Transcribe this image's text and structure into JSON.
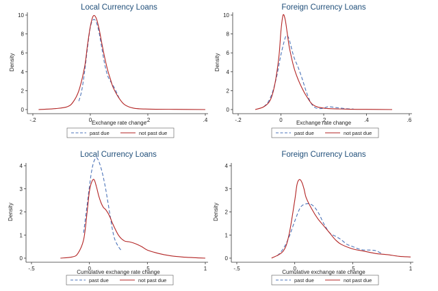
{
  "chart_data": [
    {
      "type": "line",
      "title": "Local Currency Loans",
      "xlabel": "Exchange rate change",
      "ylabel": "Density",
      "xlim": [
        -0.2,
        0.4
      ],
      "ylim": [
        0,
        10
      ],
      "xticks": [
        -0.2,
        0,
        0.2,
        0.4
      ],
      "xtick_labels": [
        "-.2",
        "0",
        ".2",
        ".4"
      ],
      "yticks": [
        0,
        2,
        4,
        6,
        8,
        10
      ],
      "ytick_labels": [
        "0",
        "2",
        "4",
        "6",
        "8",
        "10"
      ],
      "grid": false,
      "legend": "bottom",
      "series": [
        {
          "name": "past due",
          "style": "dashed",
          "color": "#4a72b8",
          "x": [
            -0.04,
            -0.03,
            -0.02,
            -0.01,
            0.0,
            0.01,
            0.02,
            0.03,
            0.04,
            0.05,
            0.06,
            0.07,
            0.08,
            0.09,
            0.1
          ],
          "y": [
            0.9,
            2.0,
            4.0,
            6.5,
            8.7,
            9.5,
            9.3,
            8.2,
            6.5,
            4.8,
            3.6,
            3.0,
            2.5,
            1.9,
            1.2
          ]
        },
        {
          "name": "not past due",
          "style": "solid",
          "color": "#b22222",
          "x": [
            -0.18,
            -0.12,
            -0.08,
            -0.06,
            -0.04,
            -0.02,
            -0.01,
            0.0,
            0.01,
            0.02,
            0.03,
            0.04,
            0.05,
            0.06,
            0.07,
            0.08,
            0.1,
            0.12,
            0.15,
            0.2,
            0.3,
            0.4
          ],
          "y": [
            0.0,
            0.1,
            0.3,
            0.8,
            2.0,
            4.5,
            6.8,
            8.8,
            9.9,
            9.7,
            8.6,
            7.0,
            5.5,
            4.2,
            3.2,
            2.3,
            1.2,
            0.5,
            0.15,
            0.05,
            0.02,
            0.0
          ]
        }
      ]
    },
    {
      "type": "line",
      "title": "Foreign Currency Loans",
      "xlabel": "Exchange rate change",
      "ylabel": "Density",
      "xlim": [
        -0.2,
        0.6
      ],
      "ylim": [
        0,
        10
      ],
      "xticks": [
        -0.2,
        0,
        0.2,
        0.4,
        0.6
      ],
      "xtick_labels": [
        "-.2",
        "0",
        ".2",
        ".4",
        ".6"
      ],
      "yticks": [
        0,
        2,
        4,
        6,
        8,
        10
      ],
      "ytick_labels": [
        "0",
        "2",
        "4",
        "6",
        "8",
        "10"
      ],
      "grid": false,
      "legend": "bottom",
      "series": [
        {
          "name": "past due",
          "style": "dashed",
          "color": "#4a72b8",
          "x": [
            -0.08,
            -0.06,
            -0.04,
            -0.02,
            0.0,
            0.02,
            0.03,
            0.04,
            0.06,
            0.08,
            0.1,
            0.12,
            0.14,
            0.16,
            0.18,
            0.2,
            0.22,
            0.26,
            0.3,
            0.34
          ],
          "y": [
            0.3,
            0.8,
            1.8,
            3.5,
            5.8,
            7.6,
            7.8,
            7.3,
            5.6,
            4.5,
            3.2,
            1.8,
            0.7,
            0.2,
            0.1,
            0.15,
            0.3,
            0.2,
            0.1,
            0.05
          ]
        },
        {
          "name": "not past due",
          "style": "solid",
          "color": "#b22222",
          "x": [
            -0.12,
            -0.08,
            -0.05,
            -0.03,
            -0.01,
            0.0,
            0.01,
            0.02,
            0.03,
            0.04,
            0.06,
            0.08,
            0.1,
            0.12,
            0.15,
            0.2,
            0.3,
            0.4,
            0.52
          ],
          "y": [
            0.0,
            0.3,
            1.0,
            2.5,
            5.5,
            8.3,
            10.0,
            9.5,
            8.0,
            6.5,
            4.5,
            3.2,
            2.2,
            1.4,
            0.5,
            0.15,
            0.05,
            0.02,
            0.0
          ]
        }
      ]
    },
    {
      "type": "line",
      "title": "Local Currency Loans",
      "xlabel": "Cumulative exchange rate change",
      "ylabel": "Density",
      "xlim": [
        -0.5,
        1
      ],
      "ylim": [
        0,
        4
      ],
      "xticks": [
        -0.5,
        0,
        0.5,
        1
      ],
      "xtick_labels": [
        "-.5",
        "0",
        ".5",
        "1"
      ],
      "yticks": [
        0,
        1,
        2,
        3,
        4
      ],
      "ytick_labels": [
        "0",
        "1",
        "2",
        "3",
        "4"
      ],
      "grid": false,
      "legend": "bottom",
      "series": [
        {
          "name": "past due",
          "style": "dashed",
          "color": "#4a72b8",
          "x": [
            -0.05,
            -0.02,
            0.0,
            0.02,
            0.04,
            0.06,
            0.08,
            0.1,
            0.12,
            0.14,
            0.16,
            0.18,
            0.2,
            0.22,
            0.25,
            0.28
          ],
          "y": [
            1.1,
            2.3,
            3.1,
            3.8,
            4.2,
            4.35,
            4.2,
            3.9,
            3.5,
            3.0,
            2.4,
            1.8,
            1.2,
            0.8,
            0.5,
            0.3
          ]
        },
        {
          "name": "not past due",
          "style": "solid",
          "color": "#b22222",
          "x": [
            -0.25,
            -0.15,
            -0.1,
            -0.05,
            -0.02,
            0.0,
            0.02,
            0.04,
            0.06,
            0.08,
            0.1,
            0.12,
            0.14,
            0.16,
            0.18,
            0.2,
            0.25,
            0.3,
            0.35,
            0.4,
            0.45,
            0.5,
            0.6,
            0.7,
            0.8,
            0.9,
            1.0
          ],
          "y": [
            0.0,
            0.05,
            0.2,
            0.8,
            2.0,
            2.9,
            3.3,
            3.4,
            3.1,
            2.7,
            2.4,
            2.2,
            2.1,
            1.95,
            1.75,
            1.5,
            1.0,
            0.75,
            0.7,
            0.62,
            0.5,
            0.35,
            0.2,
            0.1,
            0.05,
            0.02,
            0.0
          ]
        }
      ]
    },
    {
      "type": "line",
      "title": "Foreign Currency Loans",
      "xlabel": "Cumulative exchange rate change",
      "ylabel": "Density",
      "xlim": [
        -0.5,
        1
      ],
      "ylim": [
        0,
        4
      ],
      "xticks": [
        -0.5,
        0,
        0.5,
        1
      ],
      "xtick_labels": [
        "-.5",
        "0",
        ".5",
        "1"
      ],
      "yticks": [
        0,
        1,
        2,
        3,
        4
      ],
      "ytick_labels": [
        "0",
        "1",
        "2",
        "3",
        "4"
      ],
      "grid": false,
      "legend": "bottom",
      "series": [
        {
          "name": "past due",
          "style": "dashed",
          "color": "#4a72b8",
          "x": [
            -0.15,
            -0.1,
            -0.05,
            0.0,
            0.05,
            0.1,
            0.15,
            0.2,
            0.25,
            0.3,
            0.35,
            0.4,
            0.45,
            0.5,
            0.55,
            0.6,
            0.65,
            0.7,
            0.75
          ],
          "y": [
            0.1,
            0.4,
            0.9,
            1.6,
            2.2,
            2.35,
            2.3,
            2.0,
            1.5,
            1.1,
            0.95,
            0.8,
            0.6,
            0.5,
            0.4,
            0.35,
            0.35,
            0.32,
            0.2
          ]
        },
        {
          "name": "not past due",
          "style": "solid",
          "color": "#b22222",
          "x": [
            -0.2,
            -0.1,
            -0.05,
            0.0,
            0.02,
            0.04,
            0.06,
            0.08,
            0.1,
            0.15,
            0.2,
            0.25,
            0.3,
            0.35,
            0.4,
            0.5,
            0.6,
            0.7,
            0.8,
            0.9,
            1.0
          ],
          "y": [
            0.0,
            0.3,
            1.0,
            2.5,
            3.2,
            3.4,
            3.3,
            3.0,
            2.6,
            2.1,
            1.7,
            1.4,
            1.1,
            0.8,
            0.6,
            0.4,
            0.3,
            0.2,
            0.15,
            0.08,
            0.05
          ]
        }
      ]
    }
  ]
}
